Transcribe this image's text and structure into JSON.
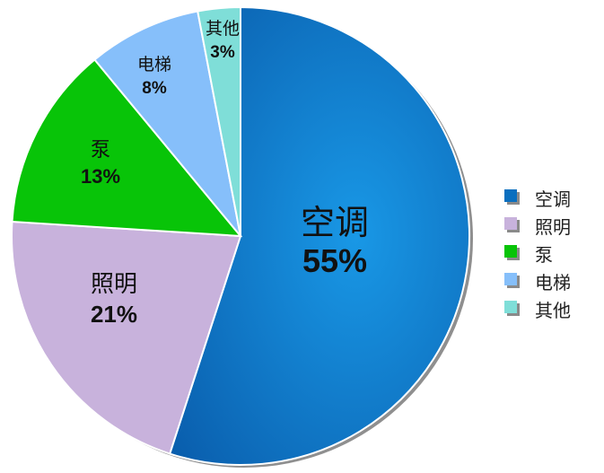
{
  "chart_data": {
    "type": "pie",
    "categories": [
      "空调",
      "照明",
      "泵",
      "电梯",
      "其他"
    ],
    "values": [
      55,
      21,
      13,
      8,
      3
    ],
    "value_labels": [
      "55%",
      "21%",
      "13%",
      "8%",
      "3%"
    ],
    "colors": [
      "#0a6fbf",
      "#c8b2dc",
      "#08c408",
      "#86bffa",
      "#7fded8"
    ],
    "legend": {
      "position": "right",
      "entries": [
        "空调",
        "照明",
        "泵",
        "电梯",
        "其他"
      ]
    }
  }
}
